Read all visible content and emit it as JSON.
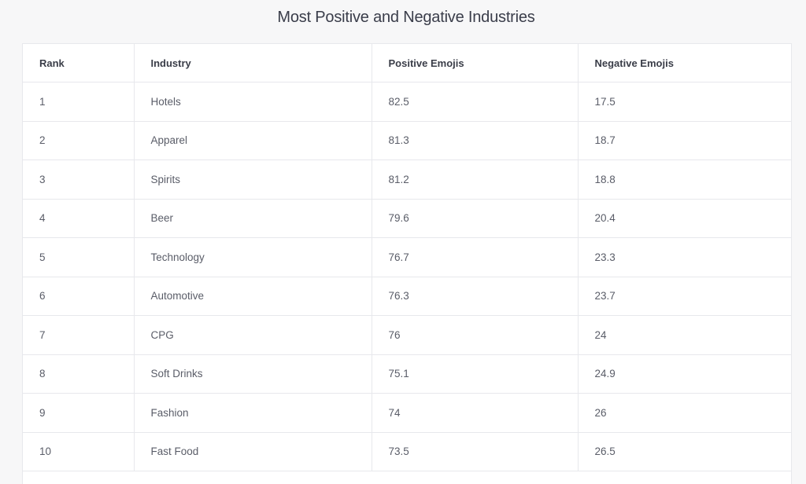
{
  "chart_data": {
    "type": "table",
    "title": "Most Positive and Negative Industries",
    "columns": [
      "Rank",
      "Industry",
      "Positive Emojis",
      "Negative Emojis"
    ],
    "rows": [
      [
        "1",
        "Hotels",
        "82.5",
        "17.5"
      ],
      [
        "2",
        "Apparel",
        "81.3",
        "18.7"
      ],
      [
        "3",
        "Spirits",
        "81.2",
        "18.8"
      ],
      [
        "4",
        "Beer",
        "79.6",
        "20.4"
      ],
      [
        "5",
        "Technology",
        "76.7",
        "23.3"
      ],
      [
        "6",
        "Automotive",
        "76.3",
        "23.7"
      ],
      [
        "7",
        "CPG",
        "76",
        "24"
      ],
      [
        "8",
        "Soft Drinks",
        "75.1",
        "24.9"
      ],
      [
        "9",
        "Fashion",
        "74",
        "26"
      ],
      [
        "10",
        "Fast Food",
        "73.5",
        "26.5"
      ]
    ]
  }
}
